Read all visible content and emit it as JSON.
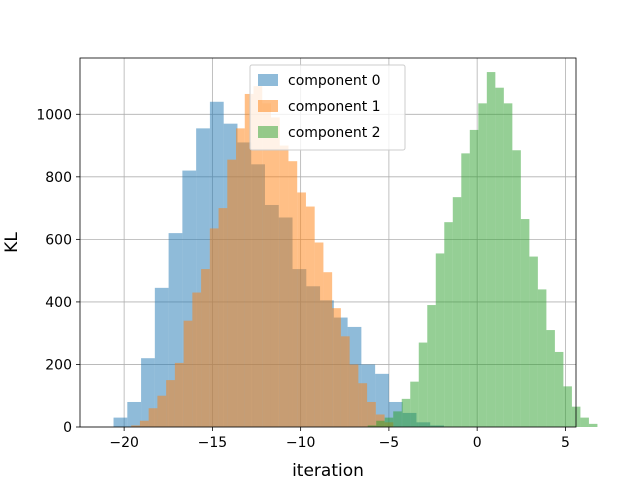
{
  "chart_data": {
    "type": "histogram",
    "xlabel": "iteration",
    "ylabel": "KL",
    "xlim": [
      -22.5,
      5.6
    ],
    "ylim": [
      0,
      1180
    ],
    "x_ticks": [
      -20,
      -15,
      -10,
      -5,
      0,
      5
    ],
    "y_ticks": [
      0,
      200,
      400,
      600,
      800,
      1000
    ],
    "grid": true,
    "legend_position": "upper-center",
    "legend": [
      "component 0",
      "component 1",
      "component 2"
    ],
    "bar_alpha": 0.5,
    "series": [
      {
        "name": "component 0",
        "color": "#1f77b4",
        "bin_start": -20.6,
        "bin_width": 0.78,
        "counts": [
          30,
          80,
          220,
          445,
          620,
          820,
          955,
          1040,
          970,
          910,
          840,
          710,
          670,
          505,
          450,
          405,
          350,
          320,
          200,
          170,
          80,
          45,
          15,
          5
        ]
      },
      {
        "name": "component 1",
        "color": "#ff7f0e",
        "bin_start": -19.6,
        "bin_width": 0.495,
        "counts": [
          5,
          20,
          60,
          100,
          150,
          205,
          340,
          430,
          505,
          635,
          700,
          855,
          955,
          1065,
          1090,
          1035,
          990,
          900,
          850,
          750,
          705,
          590,
          495,
          380,
          290,
          200,
          140,
          80,
          40,
          15
        ]
      },
      {
        "name": "component 2",
        "color": "#2ca02c",
        "bin_start": -6.2,
        "bin_width": 0.482,
        "counts": [
          5,
          20,
          30,
          50,
          90,
          145,
          270,
          390,
          555,
          655,
          735,
          875,
          950,
          1035,
          1135,
          1085,
          1035,
          885,
          665,
          545,
          440,
          310,
          240,
          130,
          65,
          30,
          10
        ]
      }
    ]
  }
}
